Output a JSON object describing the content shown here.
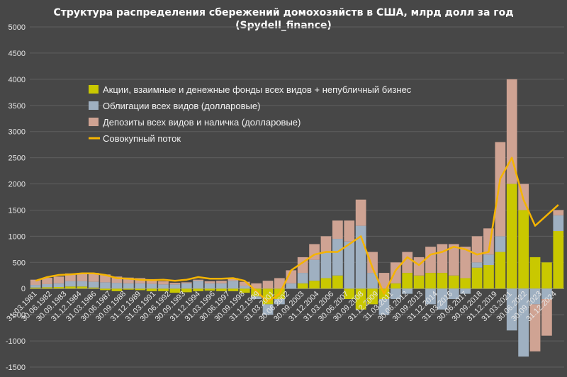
{
  "chart_data": {
    "type": "bar",
    "title": "Структура распределения сбережений домохозяйств в США, млрд долл за год",
    "subtitle": "(Spydell_finance)",
    "xlabel": "",
    "ylabel": "",
    "ylim": [
      -1500,
      5000
    ],
    "yticks": [
      -1500,
      -1000,
      -500,
      0,
      500,
      1000,
      1500,
      2000,
      2500,
      3000,
      3500,
      4000,
      4500,
      5000
    ],
    "grid": true,
    "legend_position": "top-left",
    "stacked": true,
    "colors": {
      "background": "#474747",
      "grid": "#5f5f5f",
      "equity": "#c9c800",
      "bonds": "#9fb0c1",
      "deposits": "#cfa393",
      "total": "#f5b400"
    },
    "x_tick_labels": [
      "31.03.1981",
      "30.06.1982",
      "30.09.1983",
      "31.12.1984",
      "31.03.1986",
      "30.06.1987",
      "30.09.1988",
      "31.12.1989",
      "31.03.1991",
      "30.06.1992",
      "30.09.1993",
      "31.12.1994",
      "31.03.1996",
      "30.06.1997",
      "30.09.1998",
      "31.12.1999",
      "31.03.2001",
      "30.06.2002",
      "30.09.2003",
      "31.12.2004",
      "31.03.2006",
      "30.06.2007",
      "30.09.2008",
      "31.12.2009",
      "31.03.2011",
      "30.06.2012",
      "30.09.2013",
      "31.12.2014",
      "31.03.2016",
      "30.06.2017",
      "30.09.2018",
      "31.12.2019",
      "31.03.2021",
      "30.06.2022",
      "30.09.2023",
      "31.12.2024"
    ],
    "x": [
      "1980",
      "1981",
      "1982",
      "1983",
      "1984",
      "1985",
      "1986",
      "1987",
      "1988",
      "1989",
      "1990",
      "1991",
      "1992",
      "1993",
      "1994",
      "1995",
      "1996",
      "1997",
      "1998",
      "1999",
      "2000",
      "2001",
      "2002",
      "2003",
      "2004",
      "2005",
      "2006",
      "2007",
      "2008",
      "2009",
      "2010",
      "2011",
      "2012",
      "2013",
      "2014",
      "2015",
      "2016",
      "2017",
      "2018",
      "2019",
      "2020",
      "2021",
      "2022",
      "2023",
      "2024",
      "2025"
    ],
    "series": [
      {
        "name": "Акции, взаимные и денежные фонды всех видов + непубличный бизнес",
        "key": "equity",
        "values": [
          20,
          25,
          30,
          40,
          40,
          20,
          -30,
          -50,
          -20,
          -30,
          -50,
          -50,
          -80,
          -70,
          -50,
          -40,
          -50,
          -50,
          -80,
          -150,
          -300,
          -200,
          0,
          100,
          150,
          200,
          250,
          -200,
          -400,
          -300,
          -200,
          100,
          300,
          250,
          300,
          300,
          250,
          200,
          400,
          450,
          700,
          2000,
          1500,
          600,
          500,
          1100
        ]
      },
      {
        "name": "Облигации всех видов (долларовые)",
        "key": "bonds",
        "values": [
          50,
          60,
          70,
          100,
          100,
          110,
          120,
          110,
          100,
          100,
          90,
          80,
          80,
          100,
          150,
          100,
          100,
          150,
          50,
          -50,
          -200,
          -100,
          100,
          200,
          400,
          500,
          700,
          900,
          1200,
          300,
          -300,
          -200,
          -100,
          0,
          -300,
          -400,
          -200,
          -100,
          100,
          200,
          300,
          -800,
          -1300,
          -300,
          -200,
          300
        ]
      },
      {
        "name": "Депозиты всех видов и наличка (долларовые)",
        "key": "deposits",
        "values": [
          100,
          120,
          130,
          150,
          160,
          170,
          150,
          120,
          110,
          100,
          90,
          60,
          30,
          20,
          20,
          40,
          50,
          50,
          80,
          100,
          150,
          200,
          250,
          300,
          300,
          300,
          350,
          400,
          500,
          400,
          300,
          400,
          400,
          350,
          500,
          550,
          600,
          600,
          500,
          500,
          1800,
          2000,
          500,
          -900,
          -700,
          100
        ]
      }
    ],
    "line_series": {
      "name": "Совокупный поток",
      "key": "total",
      "values": [
        150,
        220,
        260,
        270,
        290,
        290,
        260,
        200,
        190,
        170,
        160,
        170,
        150,
        170,
        220,
        190,
        190,
        200,
        150,
        -50,
        -250,
        -100,
        350,
        500,
        650,
        700,
        700,
        850,
        1000,
        400,
        -100,
        350,
        600,
        450,
        650,
        700,
        800,
        750,
        650,
        700,
        2100,
        2500,
        1700,
        1200,
        1400,
        1600
      ]
    }
  }
}
